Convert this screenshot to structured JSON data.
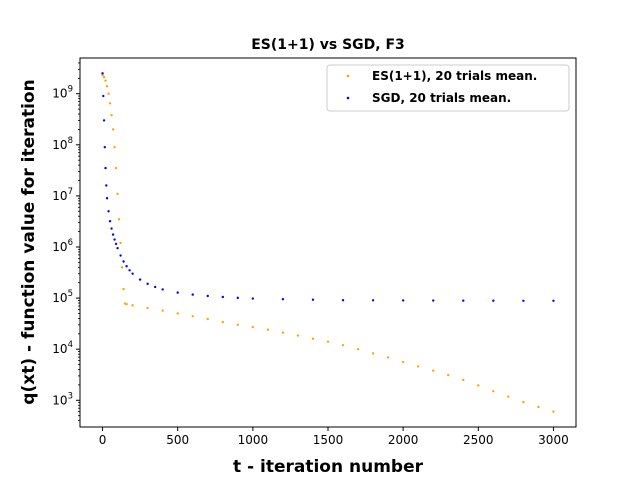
{
  "chart_data": {
    "type": "scatter",
    "title": "ES(1+1) vs SGD, F3",
    "xlabel": "t - iteration number",
    "ylabel": "q(xt) - function value for iteration",
    "xlim": [
      -150,
      3150
    ],
    "ylim": [
      300,
      5000000000
    ],
    "yscale": "log",
    "legend_position": "top-right",
    "x_ticks": [
      0,
      500,
      1000,
      1500,
      2000,
      2500,
      3000
    ],
    "x_tick_labels": [
      "0",
      "500",
      "1000",
      "1500",
      "2000",
      "2500",
      "3000"
    ],
    "y_ticks": [
      1000,
      10000,
      100000,
      1000000,
      10000000,
      100000000,
      1000000000
    ],
    "y_tick_labels": [
      {
        "base": "10",
        "exp": "3"
      },
      {
        "base": "10",
        "exp": "4"
      },
      {
        "base": "10",
        "exp": "5"
      },
      {
        "base": "10",
        "exp": "6"
      },
      {
        "base": "10",
        "exp": "7"
      },
      {
        "base": "10",
        "exp": "8"
      },
      {
        "base": "10",
        "exp": "9"
      }
    ],
    "series": [
      {
        "name": "ES(1+1), 20 trials mean.",
        "color": "#ffa500",
        "x": [
          0,
          10,
          20,
          30,
          40,
          50,
          60,
          70,
          80,
          90,
          100,
          110,
          120,
          130,
          140,
          150,
          160,
          200,
          300,
          400,
          500,
          600,
          700,
          800,
          900,
          1000,
          1100,
          1200,
          1300,
          1400,
          1500,
          1600,
          1700,
          1800,
          1900,
          2000,
          2100,
          2200,
          2300,
          2400,
          2500,
          2600,
          2700,
          2800,
          2900,
          3000
        ],
        "y": [
          2300000000,
          2100000000,
          1800000000,
          1400000000,
          1000000000,
          650000000,
          380000000,
          200000000,
          90000000,
          35000000,
          11000000,
          3500000,
          1200000,
          400000,
          150000,
          78000,
          76000,
          72000,
          64000,
          57000,
          50000,
          44000,
          39000,
          34000,
          30000,
          27000,
          24000,
          21000,
          18500,
          16000,
          14000,
          12000,
          10000,
          8300,
          6900,
          5600,
          4600,
          3800,
          3100,
          2500,
          1950,
          1500,
          1180,
          920,
          740,
          600
        ]
      },
      {
        "name": "SGD, 20 trials mean.",
        "color": "#0000ff",
        "x": [
          0,
          5,
          10,
          15,
          20,
          25,
          30,
          40,
          50,
          60,
          70,
          80,
          90,
          100,
          120,
          140,
          160,
          180,
          200,
          250,
          300,
          350,
          400,
          500,
          600,
          700,
          800,
          900,
          1000,
          1200,
          1400,
          1600,
          1800,
          2000,
          2200,
          2400,
          2600,
          2800,
          3000
        ],
        "y": [
          2500000000,
          900000000,
          300000000,
          90000000,
          35000000,
          16000000,
          9000000,
          5000000,
          3200000,
          2300000,
          1750000,
          1400000,
          1150000,
          950000,
          680000,
          520000,
          420000,
          350000,
          300000,
          230000,
          190000,
          165000,
          148000,
          128000,
          117000,
          110000,
          105000,
          101000,
          98000,
          95000,
          93000,
          91000,
          90500,
          90000,
          89500,
          89000,
          88800,
          88600,
          88500
        ]
      }
    ]
  }
}
